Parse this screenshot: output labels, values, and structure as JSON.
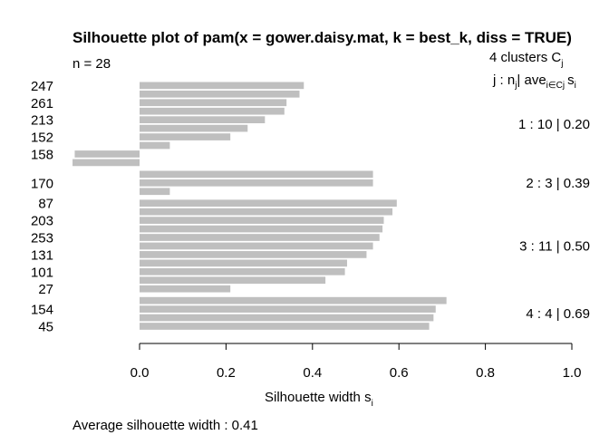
{
  "chart_data": {
    "type": "bar",
    "orientation": "horizontal",
    "title": "Silhouette plot of pam(x = gower.daisy.mat, k = best_k, diss = TRUE)",
    "n_label": "n = 28",
    "clusters_header": "4  clusters  C",
    "clusters_header_sub": "j",
    "legend_header": {
      "j": "j :  n",
      "j_sub": "j",
      "bar": "| ave",
      "ave_sub": "i∈Cj",
      "s": "s",
      "s_sub": "i"
    },
    "xlabel": "Silhouette width s",
    "xlabel_sub": "i",
    "xlim": [
      0,
      1
    ],
    "xticks": [
      0.0,
      0.2,
      0.4,
      0.6,
      0.8,
      1.0
    ],
    "xtick_labels": [
      "0.0",
      "0.2",
      "0.4",
      "0.6",
      "0.8",
      "1.0"
    ],
    "average_text": "Average silhouette width :  0.41",
    "clusters": [
      {
        "summary": "1 :   10  |  0.20",
        "bars": [
          {
            "label": "247",
            "value": 0.38
          },
          {
            "label": "",
            "value": 0.37
          },
          {
            "label": "261",
            "value": 0.34
          },
          {
            "label": "",
            "value": 0.335
          },
          {
            "label": "213",
            "value": 0.29
          },
          {
            "label": "",
            "value": 0.25
          },
          {
            "label": "152",
            "value": 0.21
          },
          {
            "label": "",
            "value": 0.07
          },
          {
            "label": "158",
            "value": -0.15
          },
          {
            "label": "",
            "value": -0.155
          }
        ]
      },
      {
        "summary": "2 :   3  |  0.39",
        "bars": [
          {
            "label": "",
            "value": 0.54
          },
          {
            "label": "170",
            "value": 0.54
          },
          {
            "label": "",
            "value": 0.07
          }
        ]
      },
      {
        "summary": "3 :   11  |  0.50",
        "bars": [
          {
            "label": "87",
            "value": 0.595
          },
          {
            "label": "",
            "value": 0.585
          },
          {
            "label": "203",
            "value": 0.565
          },
          {
            "label": "",
            "value": 0.562
          },
          {
            "label": "253",
            "value": 0.555
          },
          {
            "label": "",
            "value": 0.54
          },
          {
            "label": "131",
            "value": 0.525
          },
          {
            "label": "",
            "value": 0.48
          },
          {
            "label": "101",
            "value": 0.475
          },
          {
            "label": "",
            "value": 0.43
          },
          {
            "label": "27",
            "value": 0.21
          }
        ]
      },
      {
        "summary": "4 :   4  |  0.69",
        "bars": [
          {
            "label": "",
            "value": 0.71
          },
          {
            "label": "154",
            "value": 0.685
          },
          {
            "label": "",
            "value": 0.68
          },
          {
            "label": "45",
            "value": 0.67
          }
        ]
      }
    ]
  }
}
